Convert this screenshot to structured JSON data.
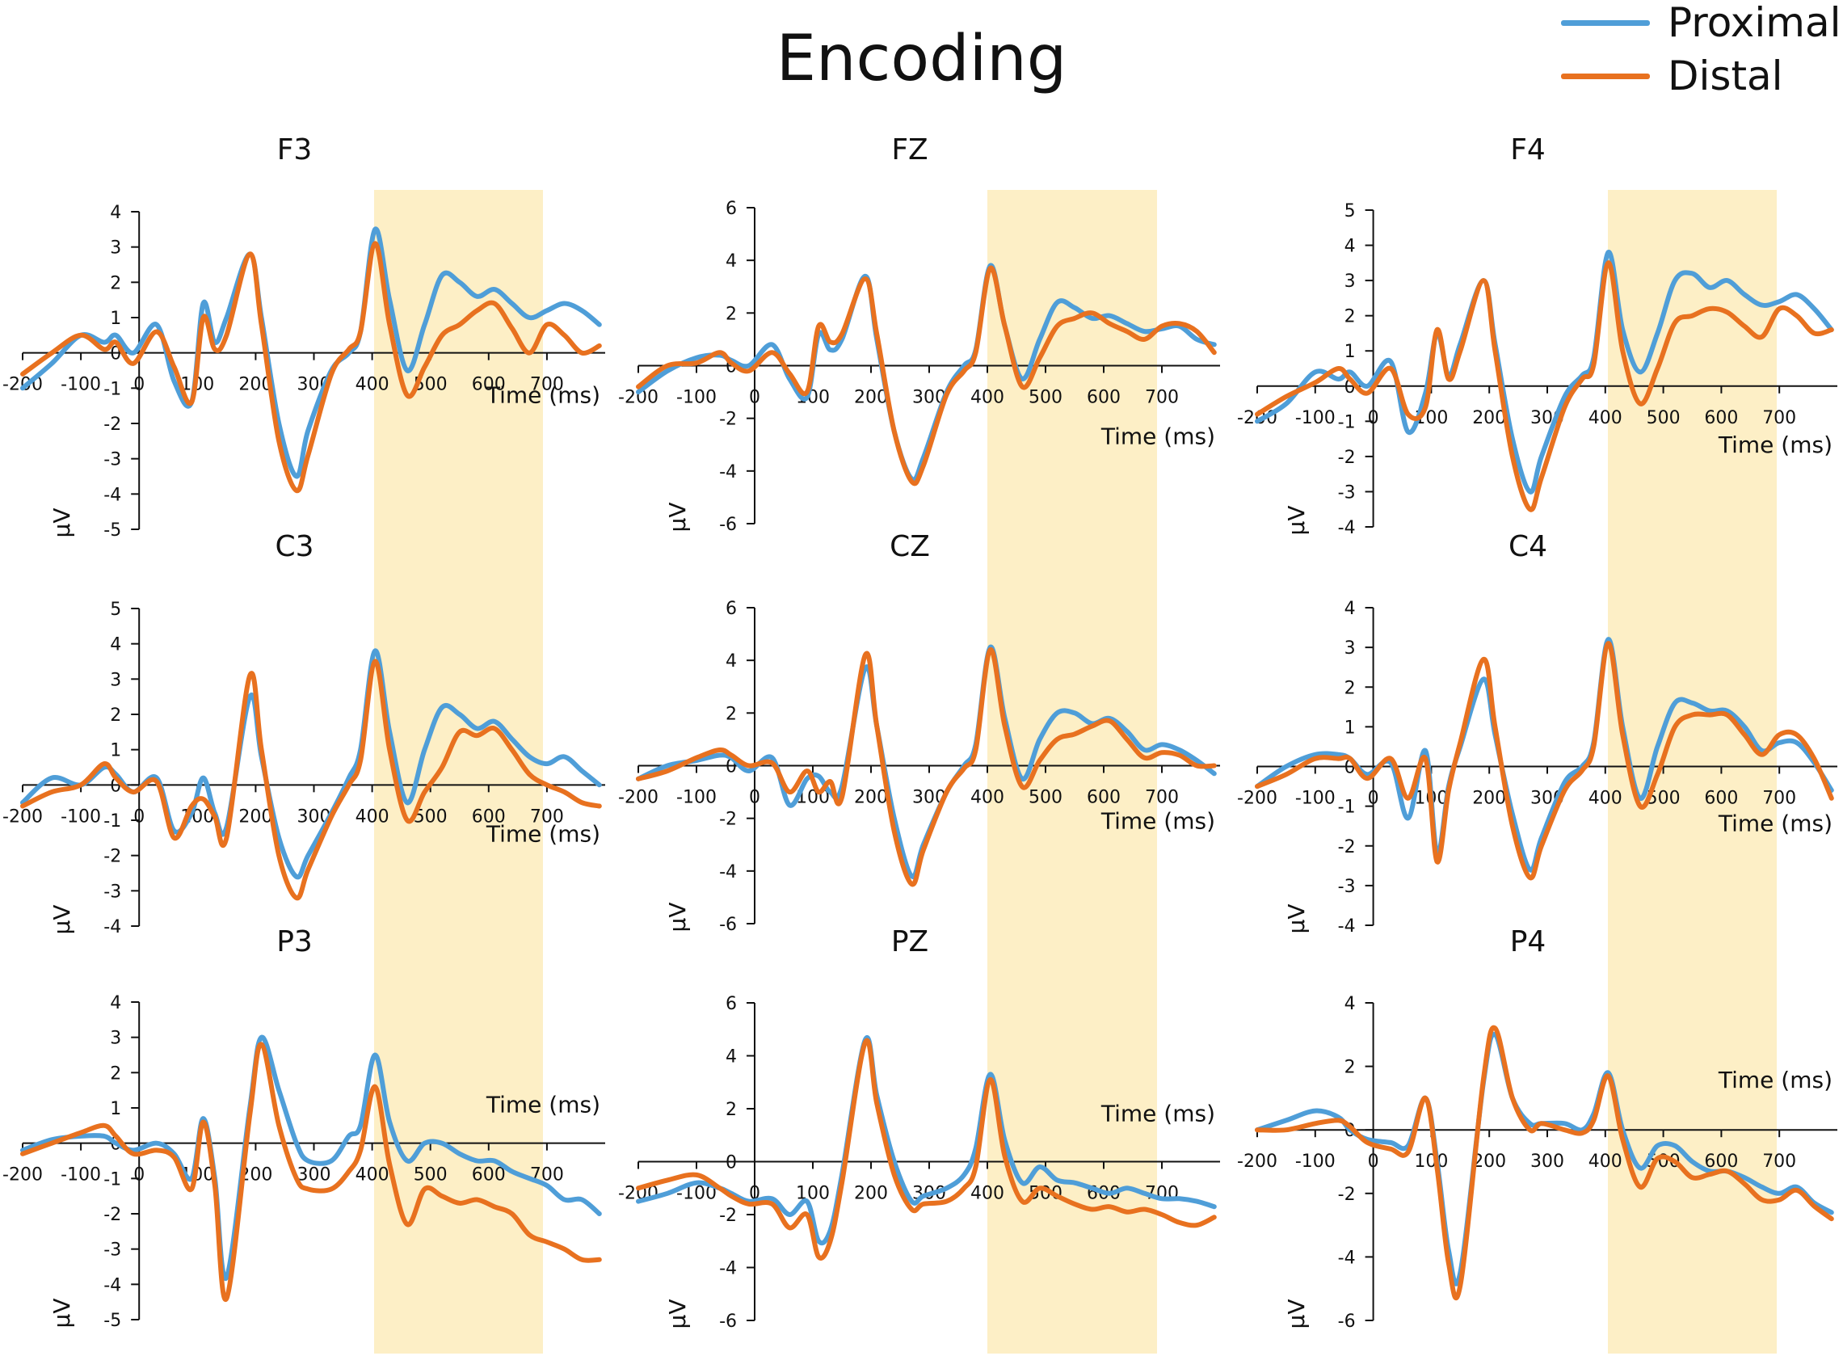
{
  "title": "Encoding",
  "legend": [
    {
      "name": "Proximal",
      "color": "#4F9ED8"
    },
    {
      "name": "Distal",
      "color": "#E8711F"
    }
  ],
  "highlight_color": "#FDEFC6",
  "chart_data": {
    "type": "line",
    "title": "Encoding",
    "x_ticks": [
      -200,
      -100,
      0,
      100,
      200,
      300,
      400,
      500,
      600,
      700
    ],
    "x_tick_labels": [
      "-200",
      "-100",
      "0",
      "100",
      "200",
      "300",
      "400",
      "500",
      "600",
      "700"
    ],
    "xlim": [
      -200,
      800
    ],
    "xlabel": "Time (ms)",
    "ylabel": "μV",
    "highlight_window_ms": [
      400,
      700
    ],
    "series_names": [
      "Proximal",
      "Distal"
    ],
    "panels": [
      {
        "name": "F3",
        "ylim": [
          -5,
          4
        ],
        "yticks": [
          4,
          3,
          2,
          1,
          0,
          -1,
          -2,
          -3,
          -4,
          -5
        ],
        "ytick_labels": [
          "4",
          "3",
          "2",
          "1",
          "0",
          "-1",
          "-2",
          "-3",
          "-4",
          "-5"
        ],
        "key_t": [
          -200,
          -150,
          -100,
          -60,
          -40,
          -10,
          30,
          60,
          90,
          110,
          130,
          150,
          190,
          210,
          240,
          270,
          290,
          330,
          360,
          380,
          405,
          430,
          460,
          490,
          520,
          550,
          580,
          610,
          640,
          670,
          700,
          730,
          760,
          790
        ],
        "proximal": [
          -1.0,
          -0.3,
          0.5,
          0.3,
          0.5,
          0.0,
          0.8,
          -0.8,
          -1.4,
          1.4,
          0.3,
          1.0,
          2.8,
          1.0,
          -2.0,
          -3.5,
          -2.2,
          -0.5,
          0.0,
          0.6,
          3.5,
          1.5,
          -0.5,
          0.8,
          2.2,
          2.0,
          1.6,
          1.8,
          1.4,
          1.0,
          1.2,
          1.4,
          1.2,
          0.8
        ],
        "distal": [
          -0.6,
          0.0,
          0.5,
          0.1,
          0.3,
          -0.3,
          0.6,
          -0.4,
          -1.4,
          1.0,
          0.1,
          0.5,
          2.8,
          0.8,
          -2.5,
          -3.9,
          -2.9,
          -0.6,
          0.1,
          0.6,
          3.1,
          0.8,
          -1.2,
          -0.4,
          0.5,
          0.8,
          1.2,
          1.4,
          0.7,
          0.0,
          0.8,
          0.5,
          0.0,
          0.2
        ]
      },
      {
        "name": "FZ",
        "ylim": [
          -6,
          6
        ],
        "yticks": [
          6,
          4,
          2,
          0,
          -2,
          -4,
          -6
        ],
        "ytick_labels": [
          "6",
          "4",
          "2",
          "0",
          "-2",
          "-4",
          "-6"
        ],
        "key_t": [
          -200,
          -150,
          -100,
          -60,
          -40,
          -10,
          30,
          60,
          90,
          110,
          130,
          150,
          190,
          210,
          240,
          270,
          290,
          330,
          360,
          380,
          405,
          430,
          460,
          490,
          520,
          550,
          580,
          610,
          640,
          670,
          700,
          730,
          760,
          790
        ],
        "proximal": [
          -1.0,
          -0.2,
          0.3,
          0.4,
          0.2,
          0.0,
          0.8,
          -0.5,
          -1.2,
          1.2,
          0.6,
          1.0,
          3.4,
          1.0,
          -2.5,
          -4.3,
          -3.5,
          -1.0,
          0.0,
          0.6,
          3.8,
          1.5,
          -0.5,
          1.0,
          2.4,
          2.2,
          1.8,
          1.9,
          1.6,
          1.3,
          1.4,
          1.5,
          1.0,
          0.8
        ],
        "distal": [
          -0.8,
          0.0,
          0.1,
          0.5,
          0.1,
          -0.2,
          0.5,
          -0.3,
          -1.0,
          1.5,
          0.9,
          1.2,
          3.3,
          1.2,
          -2.5,
          -4.4,
          -3.8,
          -1.1,
          -0.2,
          0.5,
          3.7,
          1.5,
          -0.8,
          0.3,
          1.5,
          1.8,
          2.0,
          1.6,
          1.3,
          1.0,
          1.5,
          1.6,
          1.3,
          0.5
        ]
      },
      {
        "name": "F4",
        "ylim": [
          -4,
          5
        ],
        "yticks": [
          5,
          4,
          3,
          2,
          1,
          0,
          -1,
          -2,
          -3,
          -4
        ],
        "ytick_labels": [
          "5",
          "4",
          "3",
          "2",
          "1",
          "0",
          "-1",
          "-2",
          "-3",
          "-4"
        ],
        "key_t": [
          -200,
          -150,
          -100,
          -60,
          -40,
          -10,
          30,
          60,
          90,
          110,
          130,
          150,
          190,
          210,
          240,
          270,
          290,
          330,
          360,
          380,
          405,
          430,
          460,
          490,
          520,
          550,
          580,
          610,
          640,
          670,
          700,
          730,
          760,
          790
        ],
        "proximal": [
          -1.0,
          -0.5,
          0.4,
          0.2,
          0.4,
          0.0,
          0.7,
          -1.3,
          -0.2,
          1.5,
          0.3,
          1.2,
          3.0,
          1.2,
          -1.5,
          -3.0,
          -2.0,
          -0.3,
          0.3,
          0.8,
          3.8,
          1.6,
          0.4,
          1.5,
          3.0,
          3.2,
          2.8,
          3.0,
          2.6,
          2.3,
          2.4,
          2.6,
          2.2,
          1.6
        ],
        "distal": [
          -0.8,
          -0.3,
          0.1,
          0.5,
          0.2,
          -0.2,
          0.5,
          -0.8,
          -0.6,
          1.6,
          0.2,
          1.0,
          3.0,
          1.0,
          -2.0,
          -3.5,
          -2.6,
          -0.6,
          0.2,
          0.6,
          3.5,
          1.0,
          -0.5,
          0.5,
          1.8,
          2.0,
          2.2,
          2.1,
          1.7,
          1.4,
          2.2,
          2.0,
          1.5,
          1.6
        ]
      },
      {
        "name": "C3",
        "ylim": [
          -4,
          5
        ],
        "yticks": [
          5,
          4,
          3,
          2,
          1,
          0,
          -1,
          -2,
          -3,
          -4
        ],
        "ytick_labels": [
          "5",
          "4",
          "3",
          "2",
          "1",
          "0",
          "-1",
          "-2",
          "-3",
          "-4"
        ],
        "key_t": [
          -200,
          -150,
          -100,
          -60,
          -40,
          -10,
          30,
          60,
          90,
          110,
          130,
          150,
          190,
          210,
          240,
          270,
          290,
          330,
          360,
          380,
          405,
          430,
          460,
          490,
          520,
          550,
          580,
          610,
          640,
          670,
          700,
          730,
          760,
          790
        ],
        "proximal": [
          -0.5,
          0.2,
          0.0,
          0.5,
          0.3,
          -0.2,
          0.2,
          -1.3,
          -0.8,
          0.2,
          -0.8,
          -1.2,
          2.5,
          0.8,
          -1.5,
          -2.6,
          -2.0,
          -0.8,
          0.2,
          1.0,
          3.8,
          1.5,
          -0.5,
          1.0,
          2.2,
          2.0,
          1.6,
          1.8,
          1.3,
          0.8,
          0.6,
          0.8,
          0.4,
          0.0
        ],
        "distal": [
          -0.6,
          -0.2,
          0.0,
          0.6,
          0.2,
          -0.2,
          0.1,
          -1.5,
          -0.6,
          -0.4,
          -0.9,
          -1.5,
          3.1,
          1.0,
          -2.0,
          -3.2,
          -2.4,
          -0.9,
          0.0,
          0.7,
          3.5,
          1.0,
          -1.0,
          -0.2,
          0.5,
          1.5,
          1.4,
          1.6,
          1.0,
          0.3,
          0.0,
          -0.2,
          -0.5,
          -0.6
        ]
      },
      {
        "name": "CZ",
        "ylim": [
          -6,
          6
        ],
        "yticks": [
          6,
          4,
          2,
          0,
          -2,
          -4,
          -6
        ],
        "ytick_labels": [
          "6",
          "4",
          "2",
          "0",
          "-2",
          "-4",
          "-6"
        ],
        "key_t": [
          -200,
          -150,
          -100,
          -60,
          -40,
          -10,
          30,
          60,
          90,
          110,
          130,
          150,
          190,
          210,
          240,
          270,
          290,
          330,
          360,
          380,
          405,
          430,
          460,
          490,
          520,
          550,
          580,
          610,
          640,
          670,
          700,
          730,
          760,
          790
        ],
        "proximal": [
          -0.5,
          0.0,
          0.2,
          0.4,
          0.3,
          -0.2,
          0.3,
          -1.5,
          -0.5,
          -0.4,
          -1.0,
          -0.8,
          3.7,
          1.5,
          -2.0,
          -4.2,
          -3.0,
          -1.0,
          0.0,
          0.8,
          4.5,
          1.8,
          -0.5,
          1.0,
          2.0,
          2.0,
          1.6,
          1.8,
          1.3,
          0.6,
          0.8,
          0.6,
          0.2,
          -0.3
        ],
        "distal": [
          -0.5,
          -0.2,
          0.3,
          0.6,
          0.4,
          0.0,
          0.1,
          -1.0,
          -0.2,
          -1.0,
          -0.6,
          -1.2,
          4.2,
          1.5,
          -2.5,
          -4.5,
          -3.2,
          -1.0,
          -0.1,
          0.6,
          4.4,
          1.5,
          -0.8,
          0.2,
          1.0,
          1.2,
          1.5,
          1.7,
          1.0,
          0.3,
          0.5,
          0.4,
          0.0,
          0.0
        ]
      },
      {
        "name": "C4",
        "ylim": [
          -4,
          4
        ],
        "yticks": [
          4,
          3,
          2,
          1,
          0,
          -1,
          -2,
          -3,
          -4
        ],
        "ytick_labels": [
          "4",
          "3",
          "2",
          "1",
          "0",
          "-1",
          "-2",
          "-3",
          "-4"
        ],
        "key_t": [
          -200,
          -150,
          -100,
          -60,
          -40,
          -10,
          30,
          60,
          90,
          110,
          130,
          150,
          190,
          210,
          240,
          270,
          290,
          330,
          360,
          380,
          405,
          430,
          460,
          490,
          520,
          550,
          580,
          610,
          640,
          670,
          700,
          730,
          760,
          790
        ],
        "proximal": [
          -0.5,
          0.0,
          0.3,
          0.3,
          0.2,
          -0.2,
          0.1,
          -1.3,
          0.4,
          -2.2,
          -0.5,
          0.5,
          2.2,
          0.8,
          -1.2,
          -2.6,
          -1.8,
          -0.4,
          0.0,
          0.6,
          3.2,
          1.0,
          -0.8,
          0.5,
          1.6,
          1.6,
          1.4,
          1.4,
          1.0,
          0.4,
          0.6,
          0.6,
          0.1,
          -0.6
        ],
        "distal": [
          -0.5,
          -0.2,
          0.2,
          0.2,
          0.2,
          -0.3,
          0.2,
          -0.8,
          0.2,
          -2.4,
          -0.6,
          0.6,
          2.7,
          1.0,
          -1.5,
          -2.8,
          -2.0,
          -0.6,
          -0.1,
          0.5,
          3.1,
          0.8,
          -1.0,
          -0.2,
          1.0,
          1.3,
          1.3,
          1.3,
          0.8,
          0.3,
          0.8,
          0.8,
          0.2,
          -0.8
        ]
      },
      {
        "name": "P3",
        "ylim": [
          -5,
          4
        ],
        "yticks": [
          4,
          3,
          2,
          1,
          0,
          -1,
          -2,
          -3,
          -4,
          -5
        ],
        "ytick_labels": [
          "4",
          "3",
          "2",
          "1",
          "0",
          "-1",
          "-2",
          "-3",
          "-4",
          "-5"
        ],
        "key_t": [
          -200,
          -150,
          -100,
          -60,
          -40,
          -10,
          30,
          60,
          90,
          110,
          130,
          150,
          190,
          210,
          240,
          270,
          290,
          330,
          360,
          380,
          405,
          430,
          460,
          490,
          520,
          550,
          580,
          610,
          640,
          670,
          700,
          730,
          760,
          790
        ],
        "proximal": [
          -0.2,
          0.1,
          0.2,
          0.2,
          0.0,
          -0.2,
          0.0,
          -0.3,
          -1.0,
          0.7,
          -1.0,
          -3.8,
          1.0,
          3.0,
          1.5,
          0.0,
          -0.5,
          -0.5,
          0.2,
          0.5,
          2.5,
          0.6,
          -0.5,
          0.0,
          0.0,
          -0.3,
          -0.5,
          -0.5,
          -0.8,
          -1.0,
          -1.2,
          -1.6,
          -1.6,
          -2.0
        ],
        "distal": [
          -0.3,
          0.0,
          0.3,
          0.5,
          0.2,
          -0.3,
          -0.2,
          -0.4,
          -1.3,
          0.6,
          -1.2,
          -4.4,
          0.8,
          2.8,
          0.5,
          -1.0,
          -1.3,
          -1.3,
          -0.8,
          -0.2,
          1.6,
          -0.6,
          -2.3,
          -1.3,
          -1.5,
          -1.7,
          -1.6,
          -1.8,
          -2.0,
          -2.6,
          -2.8,
          -3.0,
          -3.3,
          -3.3
        ]
      },
      {
        "name": "PZ",
        "ylim": [
          -6,
          6
        ],
        "yticks": [
          6,
          4,
          2,
          0,
          -2,
          -4,
          -6
        ],
        "ytick_labels": [
          "6",
          "4",
          "2",
          "0",
          "-2",
          "-4",
          "-6"
        ],
        "key_t": [
          -200,
          -150,
          -100,
          -60,
          -40,
          -10,
          30,
          60,
          90,
          110,
          130,
          150,
          190,
          210,
          240,
          270,
          290,
          330,
          360,
          380,
          405,
          430,
          460,
          490,
          520,
          550,
          580,
          610,
          640,
          670,
          700,
          730,
          760,
          790
        ],
        "proximal": [
          -1.5,
          -1.2,
          -0.8,
          -1.0,
          -1.2,
          -1.5,
          -1.4,
          -2.0,
          -1.5,
          -3.0,
          -2.6,
          -0.5,
          4.6,
          2.5,
          0.0,
          -1.5,
          -1.3,
          -1.0,
          -0.5,
          0.5,
          3.3,
          0.8,
          -0.8,
          -0.2,
          -0.7,
          -0.8,
          -1.0,
          -1.2,
          -1.0,
          -1.2,
          -1.4,
          -1.4,
          -1.5,
          -1.7
        ],
        "distal": [
          -1.0,
          -0.7,
          -0.5,
          -1.0,
          -1.3,
          -1.6,
          -1.6,
          -2.5,
          -2.0,
          -3.6,
          -3.0,
          -0.8,
          4.5,
          2.2,
          -0.5,
          -1.8,
          -1.6,
          -1.5,
          -1.0,
          -0.2,
          3.1,
          0.2,
          -1.5,
          -1.0,
          -1.3,
          -1.6,
          -1.8,
          -1.7,
          -1.9,
          -1.8,
          -2.0,
          -2.3,
          -2.4,
          -2.1
        ]
      },
      {
        "name": "P4",
        "ylim": [
          -6,
          4
        ],
        "yticks": [
          4,
          2,
          0,
          -2,
          -4,
          -6
        ],
        "ytick_labels": [
          "4",
          "2",
          "0",
          "-2",
          "-4",
          "-6"
        ],
        "key_t": [
          -200,
          -150,
          -100,
          -60,
          -40,
          -10,
          30,
          60,
          90,
          110,
          130,
          150,
          190,
          210,
          240,
          270,
          290,
          330,
          360,
          380,
          405,
          430,
          460,
          490,
          520,
          550,
          580,
          610,
          640,
          670,
          700,
          730,
          760,
          790
        ],
        "proximal": [
          0.0,
          0.3,
          0.6,
          0.4,
          0.0,
          -0.3,
          -0.4,
          -0.5,
          1.0,
          -1.0,
          -3.8,
          -4.5,
          1.5,
          3.0,
          1.0,
          0.2,
          0.2,
          0.2,
          0.0,
          0.5,
          1.8,
          0.0,
          -1.2,
          -0.5,
          -0.5,
          -1.0,
          -1.3,
          -1.3,
          -1.5,
          -1.8,
          -2.0,
          -1.8,
          -2.3,
          -2.6
        ],
        "distal": [
          0.0,
          0.0,
          0.2,
          0.3,
          0.1,
          -0.4,
          -0.6,
          -0.7,
          1.0,
          -1.2,
          -4.2,
          -4.9,
          1.6,
          3.2,
          1.0,
          0.0,
          0.2,
          0.0,
          -0.1,
          0.3,
          1.7,
          -0.3,
          -1.8,
          -0.9,
          -1.0,
          -1.5,
          -1.4,
          -1.3,
          -1.7,
          -2.2,
          -2.2,
          -1.9,
          -2.4,
          -2.8
        ]
      }
    ]
  }
}
